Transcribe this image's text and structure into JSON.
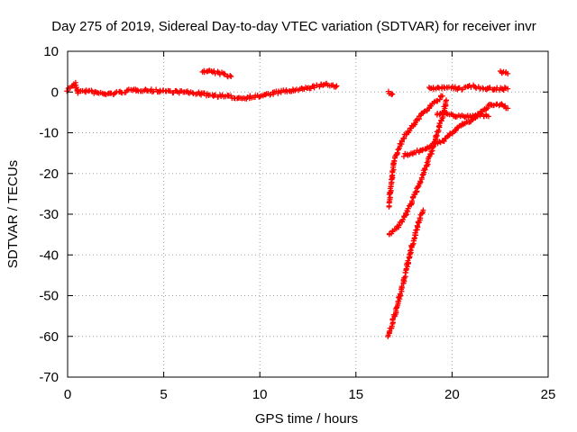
{
  "chart_data": {
    "type": "scatter",
    "title": "Day 275 of 2019, Sidereal Day-to-day VTEC variation (SDTVAR) for receiver invr",
    "xlabel": "GPS time / hours",
    "ylabel": "SDTVAR / TECUs",
    "xlim": [
      0,
      25
    ],
    "ylim": [
      -70,
      10
    ],
    "xticks": [
      0,
      5,
      10,
      15,
      20,
      25
    ],
    "yticks": [
      10,
      0,
      -10,
      -20,
      -30,
      -40,
      -50,
      -60,
      -70
    ],
    "grid": true,
    "marker": "+",
    "color": "#ff0000",
    "segments": [
      {
        "name": "main-band",
        "points": [
          [
            0,
            0.5
          ],
          [
            0.2,
            1.5
          ],
          [
            0.4,
            2
          ],
          [
            0.5,
            0
          ],
          [
            1,
            0.3
          ],
          [
            1.5,
            -0.2
          ],
          [
            2,
            -0.5
          ],
          [
            2.5,
            -0.3
          ],
          [
            3,
            0.2
          ],
          [
            3.5,
            0.5
          ],
          [
            4,
            0.5
          ],
          [
            4.5,
            0.3
          ],
          [
            5,
            0.3
          ],
          [
            5.5,
            0.1
          ],
          [
            6,
            0
          ],
          [
            6.5,
            -0.2
          ],
          [
            7,
            -0.5
          ],
          [
            7.5,
            -0.8
          ],
          [
            8,
            -1
          ],
          [
            8.5,
            -1.2
          ],
          [
            9,
            -1.5
          ],
          [
            9.5,
            -1.2
          ],
          [
            10,
            -1
          ],
          [
            10.5,
            -0.5
          ],
          [
            11,
            0
          ],
          [
            11.5,
            0.3
          ],
          [
            12,
            0.5
          ],
          [
            12.5,
            1
          ],
          [
            13,
            1.5
          ],
          [
            13.5,
            1.8
          ],
          [
            14,
            1.5
          ]
        ]
      },
      {
        "name": "arc-7",
        "points": [
          [
            7,
            5
          ],
          [
            7.5,
            5
          ],
          [
            8,
            4.5
          ],
          [
            8.5,
            3.8
          ]
        ]
      },
      {
        "name": "dot-17",
        "points": [
          [
            16.7,
            0
          ],
          [
            16.9,
            -0.5
          ]
        ]
      },
      {
        "name": "steep-rise",
        "points": [
          [
            16.7,
            -28
          ],
          [
            16.8,
            -24
          ],
          [
            16.9,
            -20
          ],
          [
            17,
            -17
          ],
          [
            17.2,
            -14
          ],
          [
            17.5,
            -11
          ],
          [
            18,
            -8
          ],
          [
            18.5,
            -5
          ],
          [
            19,
            -3
          ],
          [
            19.5,
            -1
          ]
        ]
      },
      {
        "name": "mid-curve",
        "points": [
          [
            16.7,
            -35
          ],
          [
            17,
            -34
          ],
          [
            17.5,
            -31
          ],
          [
            18,
            -26
          ],
          [
            18.5,
            -20
          ],
          [
            19,
            -14
          ],
          [
            19.5,
            -6
          ],
          [
            19.7,
            -2
          ]
        ]
      },
      {
        "name": "deep-line",
        "points": [
          [
            16.7,
            -60
          ],
          [
            17,
            -55
          ],
          [
            17.3,
            -50
          ],
          [
            17.6,
            -44
          ],
          [
            17.9,
            -38
          ],
          [
            18.2,
            -33
          ],
          [
            18.5,
            -29
          ]
        ]
      },
      {
        "name": "flat-15",
        "points": [
          [
            17.5,
            -15.5
          ],
          [
            18,
            -15
          ],
          [
            18.5,
            -14
          ],
          [
            19,
            -13
          ],
          [
            19.5,
            -12
          ]
        ]
      },
      {
        "name": "rise-to-3",
        "points": [
          [
            19.5,
            -12
          ],
          [
            20,
            -10
          ],
          [
            20.5,
            -8
          ],
          [
            21,
            -7
          ],
          [
            21.5,
            -5
          ],
          [
            22,
            -3
          ],
          [
            22.5,
            -3
          ],
          [
            22.9,
            -4
          ]
        ]
      },
      {
        "name": "band-minus-6",
        "points": [
          [
            19.2,
            -5.5
          ],
          [
            19.8,
            -5.5
          ],
          [
            20.5,
            -6
          ],
          [
            21,
            -6
          ],
          [
            21.5,
            -5.5
          ],
          [
            21.9,
            -6
          ]
        ]
      },
      {
        "name": "top-right",
        "points": [
          [
            18.8,
            0.8
          ],
          [
            19.5,
            1.2
          ],
          [
            20,
            1
          ],
          [
            20.5,
            0.8
          ],
          [
            21,
            1.5
          ],
          [
            21.5,
            1
          ],
          [
            22,
            0.8
          ],
          [
            22.5,
            0.8
          ],
          [
            22.9,
            0.8
          ]
        ]
      },
      {
        "name": "corner-5",
        "points": [
          [
            22.5,
            5
          ],
          [
            22.9,
            4.5
          ]
        ]
      }
    ]
  }
}
